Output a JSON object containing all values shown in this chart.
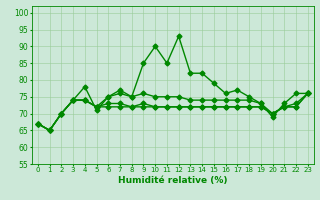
{
  "title": "",
  "xlabel": "Humidité relative (%)",
  "ylabel": "",
  "xlim": [
    -0.5,
    23.5
  ],
  "ylim": [
    55,
    102
  ],
  "yticks": [
    55,
    60,
    65,
    70,
    75,
    80,
    85,
    90,
    95,
    100
  ],
  "xticks": [
    0,
    1,
    2,
    3,
    4,
    5,
    6,
    7,
    8,
    9,
    10,
    11,
    12,
    13,
    14,
    15,
    16,
    17,
    18,
    19,
    20,
    21,
    22,
    23
  ],
  "bg_color": "#cce8d8",
  "grid_color": "#99cc99",
  "line_color": "#008800",
  "series": [
    [
      67,
      65,
      70,
      74,
      78,
      71,
      75,
      77,
      75,
      85,
      90,
      85,
      93,
      82,
      82,
      79,
      76,
      77,
      75,
      73,
      69,
      73,
      76,
      76
    ],
    [
      67,
      65,
      70,
      74,
      74,
      72,
      75,
      76,
      75,
      76,
      75,
      75,
      75,
      74,
      74,
      74,
      74,
      74,
      74,
      73,
      70,
      72,
      73,
      76
    ],
    [
      67,
      65,
      70,
      74,
      74,
      72,
      73,
      73,
      72,
      73,
      72,
      72,
      72,
      72,
      72,
      72,
      72,
      72,
      72,
      72,
      70,
      72,
      72,
      76
    ],
    [
      67,
      65,
      70,
      74,
      74,
      72,
      72,
      72,
      72,
      72,
      72,
      72,
      72,
      72,
      72,
      72,
      72,
      72,
      72,
      72,
      70,
      72,
      72,
      76
    ]
  ],
  "marker": "D",
  "markersize": 2.5,
  "linewidth": 1.0
}
